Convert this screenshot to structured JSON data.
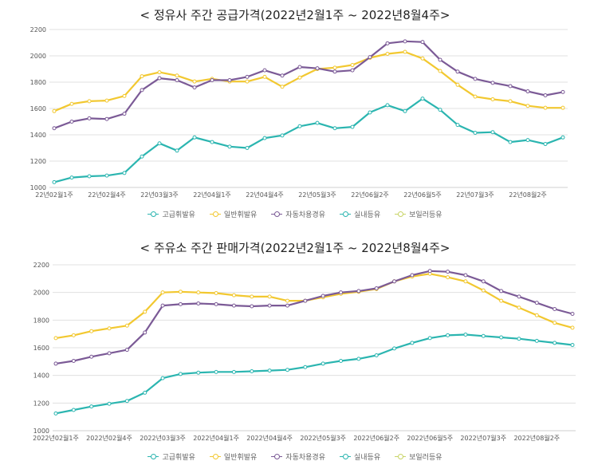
{
  "colors": {
    "gasoline_premium": "#2bb5b0",
    "gasoline_regular": "#f2c830",
    "diesel": "#7b5a96",
    "kerosene": "#2bb5b0",
    "boiler": "#c8d466",
    "grid": "#e0e0e0"
  },
  "chart_data": [
    {
      "type": "line",
      "title": "< 정유사 주간 공급가격(2022년2월1주 ~ 2022년8월4주>",
      "ylim": [
        1000,
        2200
      ],
      "yticks": [
        1000,
        1200,
        1400,
        1600,
        1800,
        2000,
        2200
      ],
      "xtick_labels": [
        "22년02월1주",
        "22년02월4주",
        "22년03월3주",
        "22년04월1주",
        "22년04월4주",
        "22년05월3주",
        "22년06월2주",
        "22년06월5주",
        "22년07월3주",
        "22년08월2주"
      ],
      "xtick_indices": [
        0,
        3,
        6,
        9,
        12,
        15,
        18,
        21,
        24,
        27
      ],
      "legend": [
        "고급휘발유",
        "일반휘발유",
        "자동차용경유",
        "실내등유",
        "보일러등유"
      ],
      "series": [
        {
          "name": "일반휘발유",
          "color_key": "gasoline_regular",
          "values": [
            1580,
            1635,
            1655,
            1660,
            1695,
            1845,
            1875,
            1850,
            1805,
            1825,
            1805,
            1805,
            1840,
            1765,
            1835,
            1900,
            1910,
            1930,
            1985,
            2015,
            2030,
            1980,
            1885,
            1780,
            1690,
            1670,
            1655,
            1620,
            1605,
            1605
          ]
        },
        {
          "name": "자동차용경유",
          "color_key": "diesel",
          "values": [
            1450,
            1500,
            1525,
            1520,
            1560,
            1740,
            1830,
            1815,
            1760,
            1815,
            1815,
            1840,
            1890,
            1850,
            1915,
            1905,
            1880,
            1890,
            1990,
            2095,
            2110,
            2105,
            1970,
            1880,
            1825,
            1795,
            1770,
            1730,
            1700,
            1725
          ]
        },
        {
          "name": "실내등유",
          "color_key": "kerosene",
          "values": [
            1040,
            1075,
            1085,
            1090,
            1110,
            1235,
            1335,
            1280,
            1380,
            1345,
            1310,
            1300,
            1375,
            1395,
            1465,
            1490,
            1450,
            1460,
            1570,
            1625,
            1580,
            1675,
            1590,
            1475,
            1415,
            1420,
            1345,
            1360,
            1330,
            1380
          ]
        }
      ]
    },
    {
      "type": "line",
      "title": "< 주유소 주간 판매가격(2022년2월1주 ~ 2022년8월4주>",
      "ylim": [
        1000,
        2200
      ],
      "yticks": [
        1000,
        1200,
        1400,
        1600,
        1800,
        2000,
        2200
      ],
      "xtick_labels": [
        "2022년02월1주",
        "2022년02월4주",
        "2022년03월3주",
        "2022년04월1주",
        "2022년04월4주",
        "2022년05월3주",
        "2022년06월2주",
        "2022년06월5주",
        "2022년07월3주",
        "2022년08월2주"
      ],
      "xtick_indices": [
        0,
        3,
        6,
        9,
        12,
        15,
        18,
        21,
        24,
        27
      ],
      "legend": [
        "고급휘발유",
        "일반휘발유",
        "자동차용경유",
        "실내등유",
        "보일러등유"
      ],
      "series": [
        {
          "name": "일반휘발유",
          "color_key": "gasoline_regular",
          "values": [
            1670,
            1690,
            1720,
            1740,
            1760,
            1860,
            2000,
            2005,
            2000,
            1995,
            1980,
            1970,
            1970,
            1940,
            1940,
            1965,
            1990,
            2005,
            2025,
            2080,
            2115,
            2135,
            2110,
            2080,
            2015,
            1940,
            1890,
            1835,
            1780,
            1745
          ]
        },
        {
          "name": "자동차용경유",
          "color_key": "diesel",
          "values": [
            1485,
            1505,
            1535,
            1560,
            1585,
            1710,
            1905,
            1915,
            1920,
            1915,
            1905,
            1900,
            1905,
            1905,
            1940,
            1975,
            2000,
            2010,
            2030,
            2080,
            2125,
            2155,
            2150,
            2125,
            2080,
            2010,
            1970,
            1925,
            1880,
            1845
          ]
        },
        {
          "name": "실내등유",
          "color_key": "kerosene",
          "values": [
            1125,
            1150,
            1175,
            1195,
            1215,
            1275,
            1380,
            1410,
            1420,
            1425,
            1425,
            1430,
            1435,
            1440,
            1460,
            1485,
            1505,
            1520,
            1545,
            1595,
            1635,
            1670,
            1690,
            1695,
            1685,
            1675,
            1665,
            1650,
            1635,
            1620
          ]
        }
      ]
    }
  ]
}
